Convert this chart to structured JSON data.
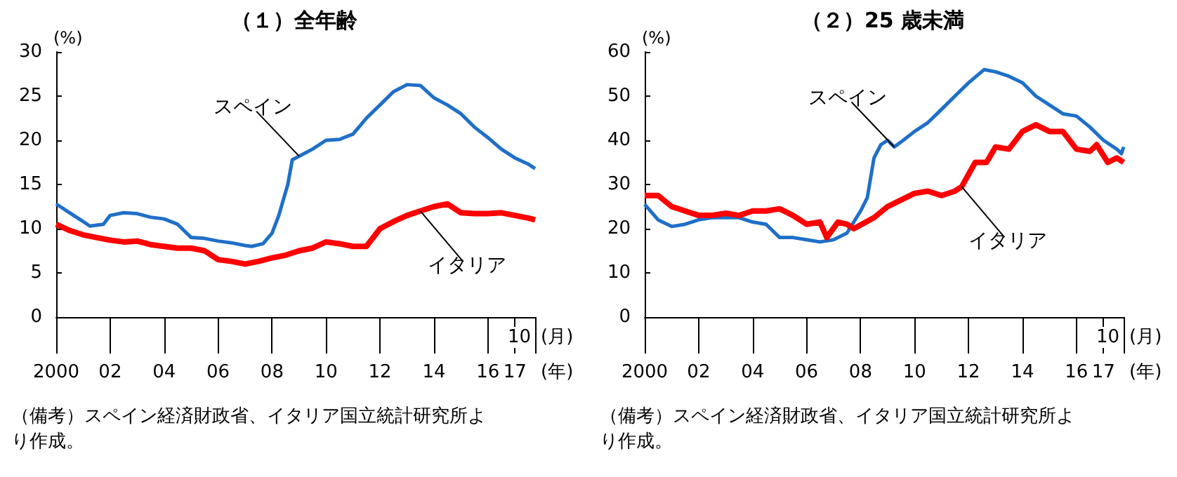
{
  "chart_data": [
    {
      "type": "line",
      "title": "（１）全年齢",
      "ylabel": "(%)",
      "xlabel": "(年)",
      "xlim": [
        "2000-01",
        "2017-10"
      ],
      "ylim": [
        0,
        30
      ],
      "yticks": [
        0,
        5,
        10,
        15,
        20,
        25,
        30
      ],
      "xticks": [
        {
          "value": "2000",
          "label": "2000"
        },
        {
          "value": "2002",
          "label": "02"
        },
        {
          "value": "2004",
          "label": "04"
        },
        {
          "value": "2006",
          "label": "06"
        },
        {
          "value": "2008",
          "label": "08"
        },
        {
          "value": "2010",
          "label": "10"
        },
        {
          "value": "2012",
          "label": "12"
        },
        {
          "value": "2014",
          "label": "14"
        },
        {
          "value": "2016",
          "label": "16"
        },
        {
          "value": "2017",
          "label": "17"
        }
      ],
      "grid": false,
      "marker": "none",
      "line_style": "solid",
      "series": [
        {
          "color": "#1f6fc8",
          "x": [
            "2000-01",
            "2000-07",
            "2001-01",
            "2001-04",
            "2001-10",
            "2002-01",
            "2002-07",
            "2003-01",
            "2003-07",
            "2004-01",
            "2004-07",
            "2005-01",
            "2005-07",
            "2006-01",
            "2006-07",
            "2007-01",
            "2007-04",
            "2007-09",
            "2008-01",
            "2008-04",
            "2008-08",
            "2008-10",
            "2009-01",
            "2009-07",
            "2010-01",
            "2010-07",
            "2011-01",
            "2011-07",
            "2012-01",
            "2012-07",
            "2013-01",
            "2013-07",
            "2014-01",
            "2014-07",
            "2015-01",
            "2015-07",
            "2016-01",
            "2016-07",
            "2017-01",
            "2017-07",
            "2017-10"
          ],
          "values": [
            12.8,
            11.8,
            10.8,
            10.3,
            10.5,
            11.5,
            11.8,
            11.7,
            11.3,
            11.1,
            10.5,
            9,
            8.9,
            8.6,
            8.4,
            8.1,
            8,
            8.3,
            9.5,
            11.5,
            15,
            17.8,
            18.2,
            19,
            20,
            20.1,
            20.7,
            22.5,
            24,
            25.5,
            26.3,
            26.2,
            24.8,
            24,
            23,
            21.5,
            20.3,
            19,
            18,
            17.3,
            16.8
          ]
        },
        {
          "color": "#ff0000",
          "x": [
            "2000-01",
            "2000-07",
            "2001-01",
            "2001-07",
            "2002-01",
            "2002-07",
            "2003-01",
            "2003-07",
            "2004-01",
            "2004-07",
            "2005-01",
            "2005-07",
            "2006-01",
            "2006-07",
            "2007-01",
            "2007-07",
            "2008-01",
            "2008-07",
            "2009-01",
            "2009-07",
            "2010-01",
            "2010-07",
            "2011-01",
            "2011-07",
            "2012-01",
            "2012-07",
            "2013-01",
            "2013-07",
            "2014-01",
            "2014-07",
            "2015-01",
            "2015-07",
            "2016-01",
            "2016-07",
            "2017-01",
            "2017-07",
            "2017-10"
          ],
          "values": [
            10.5,
            9.8,
            9.3,
            9,
            8.7,
            8.5,
            8.6,
            8.2,
            8,
            7.8,
            7.8,
            7.5,
            6.5,
            6.3,
            6,
            6.3,
            6.7,
            7,
            7.5,
            7.8,
            8.5,
            8.3,
            8,
            8,
            10,
            10.8,
            11.5,
            12,
            12.5,
            12.8,
            11.8,
            11.7,
            11.7,
            11.8,
            11.5,
            11.2,
            11
          ]
        }
      ],
      "annotations": [
        {
          "text": "スペイン",
          "x": "2009-01",
          "y": 18.2
        },
        {
          "text": "イタリア",
          "x": "2013-07",
          "y": 12
        },
        "10",
        "(月)",
        "（備考）スペイン経済財政省、イタリア国立統計研究所より作成。"
      ]
    },
    {
      "type": "line",
      "title": "（２）25 歳未満",
      "ylabel": "(%)",
      "xlabel": "(年)",
      "xlim": [
        "2000-01",
        "2017-10"
      ],
      "ylim": [
        0,
        60
      ],
      "yticks": [
        0,
        10,
        20,
        30,
        40,
        50,
        60
      ],
      "xticks": [
        {
          "value": "2000",
          "label": "2000"
        },
        {
          "value": "2002",
          "label": "02"
        },
        {
          "value": "2004",
          "label": "04"
        },
        {
          "value": "2006",
          "label": "06"
        },
        {
          "value": "2008",
          "label": "08"
        },
        {
          "value": "2010",
          "label": "10"
        },
        {
          "value": "2012",
          "label": "12"
        },
        {
          "value": "2014",
          "label": "14"
        },
        {
          "value": "2016",
          "label": "16"
        },
        {
          "value": "2017",
          "label": "17"
        }
      ],
      "grid": false,
      "marker": "none",
      "line_style": "solid",
      "series": [
        {
          "color": "#1f6fc8",
          "x": [
            "2000-01",
            "2000-07",
            "2001-01",
            "2001-07",
            "2002-01",
            "2002-07",
            "2003-01",
            "2003-07",
            "2004-01",
            "2004-07",
            "2005-01",
            "2005-07",
            "2006-01",
            "2006-07",
            "2007-01",
            "2007-07",
            "2008-01",
            "2008-04",
            "2008-07",
            "2008-10",
            "2009-01",
            "2009-04",
            "2009-08",
            "2010-01",
            "2010-07",
            "2011-01",
            "2011-07",
            "2012-01",
            "2012-08",
            "2013-01",
            "2013-07",
            "2014-01",
            "2014-07",
            "2015-01",
            "2015-07",
            "2016-01",
            "2016-07",
            "2017-01",
            "2017-07",
            "2017-09",
            "2017-10"
          ],
          "values": [
            25.5,
            22,
            20.5,
            21,
            22,
            22.5,
            22.5,
            22.5,
            21.5,
            21,
            18,
            18,
            17.5,
            17,
            17.5,
            19,
            24,
            27,
            36,
            39,
            40,
            38.5,
            40,
            42,
            44,
            47,
            50,
            53,
            56,
            55.5,
            54.5,
            53,
            50,
            48,
            46,
            45.5,
            43,
            40,
            38,
            37,
            38.5
          ]
        },
        {
          "color": "#ff0000",
          "x": [
            "2000-01",
            "2000-07",
            "2001-01",
            "2001-07",
            "2002-01",
            "2002-07",
            "2003-01",
            "2003-07",
            "2004-01",
            "2004-07",
            "2005-01",
            "2005-07",
            "2006-01",
            "2006-07",
            "2006-10",
            "2007-03",
            "2007-07",
            "2007-10",
            "2008-07",
            "2009-01",
            "2009-07",
            "2010-01",
            "2010-07",
            "2011-01",
            "2011-07",
            "2011-10",
            "2012-04",
            "2012-09",
            "2013-01",
            "2013-07",
            "2014-01",
            "2014-07",
            "2015-01",
            "2015-07",
            "2016-01",
            "2016-07",
            "2016-10",
            "2017-03",
            "2017-07",
            "2017-10"
          ],
          "values": [
            27.5,
            27.5,
            25,
            24,
            23,
            23,
            23.5,
            23,
            24,
            24,
            24.5,
            23,
            21,
            21.5,
            18,
            21.5,
            21,
            20,
            22.5,
            25,
            26.5,
            28,
            28.5,
            27.5,
            28.5,
            29.5,
            35,
            35,
            38.5,
            38,
            42,
            43.5,
            42,
            42,
            38,
            37.5,
            39,
            35,
            36,
            35
          ]
        }
      ],
      "annotations": [
        {
          "text": "スペイン",
          "x": "2009-04",
          "y": 38.5
        },
        {
          "text": "イタリア",
          "x": "2011-10",
          "y": 29.5
        },
        "10",
        "(月)",
        "（備考）スペイン経済財政省、イタリア国立統計研究所より作成。"
      ]
    }
  ]
}
